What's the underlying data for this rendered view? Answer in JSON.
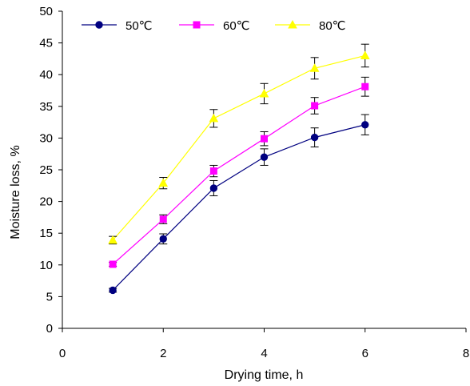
{
  "chart_data": {
    "type": "line",
    "title": "",
    "xlabel": "Drying time, h",
    "ylabel": "Moisture loss, %",
    "xlim": [
      0,
      8
    ],
    "ylim": [
      0,
      50
    ],
    "x_ticks": [
      0,
      2,
      4,
      6,
      8
    ],
    "y_ticks": [
      0,
      5,
      10,
      15,
      20,
      25,
      30,
      35,
      40,
      45,
      50
    ],
    "grid": false,
    "legend_position": "top",
    "x": [
      1,
      2,
      3,
      4,
      5,
      6
    ],
    "series": [
      {
        "name": "50℃",
        "color": "#000080",
        "marker": "circle",
        "values": [
          6,
          14.1,
          22.1,
          27.0,
          30.1,
          32.1
        ],
        "error": [
          0.3,
          0.8,
          1.2,
          1.3,
          1.5,
          1.6
        ]
      },
      {
        "name": "60℃",
        "color": "#FF00FF",
        "marker": "square",
        "values": [
          10.1,
          17.2,
          24.8,
          29.9,
          35.1,
          38.1
        ],
        "error": [
          0.3,
          0.7,
          0.9,
          1.1,
          1.3,
          1.5
        ]
      },
      {
        "name": "80℃",
        "color": "#FFFF00",
        "marker": "triangle",
        "values": [
          13.9,
          22.9,
          33.1,
          37.0,
          41.0,
          43.0
        ],
        "error": [
          0.6,
          0.9,
          1.4,
          1.6,
          1.7,
          1.8
        ]
      }
    ]
  }
}
